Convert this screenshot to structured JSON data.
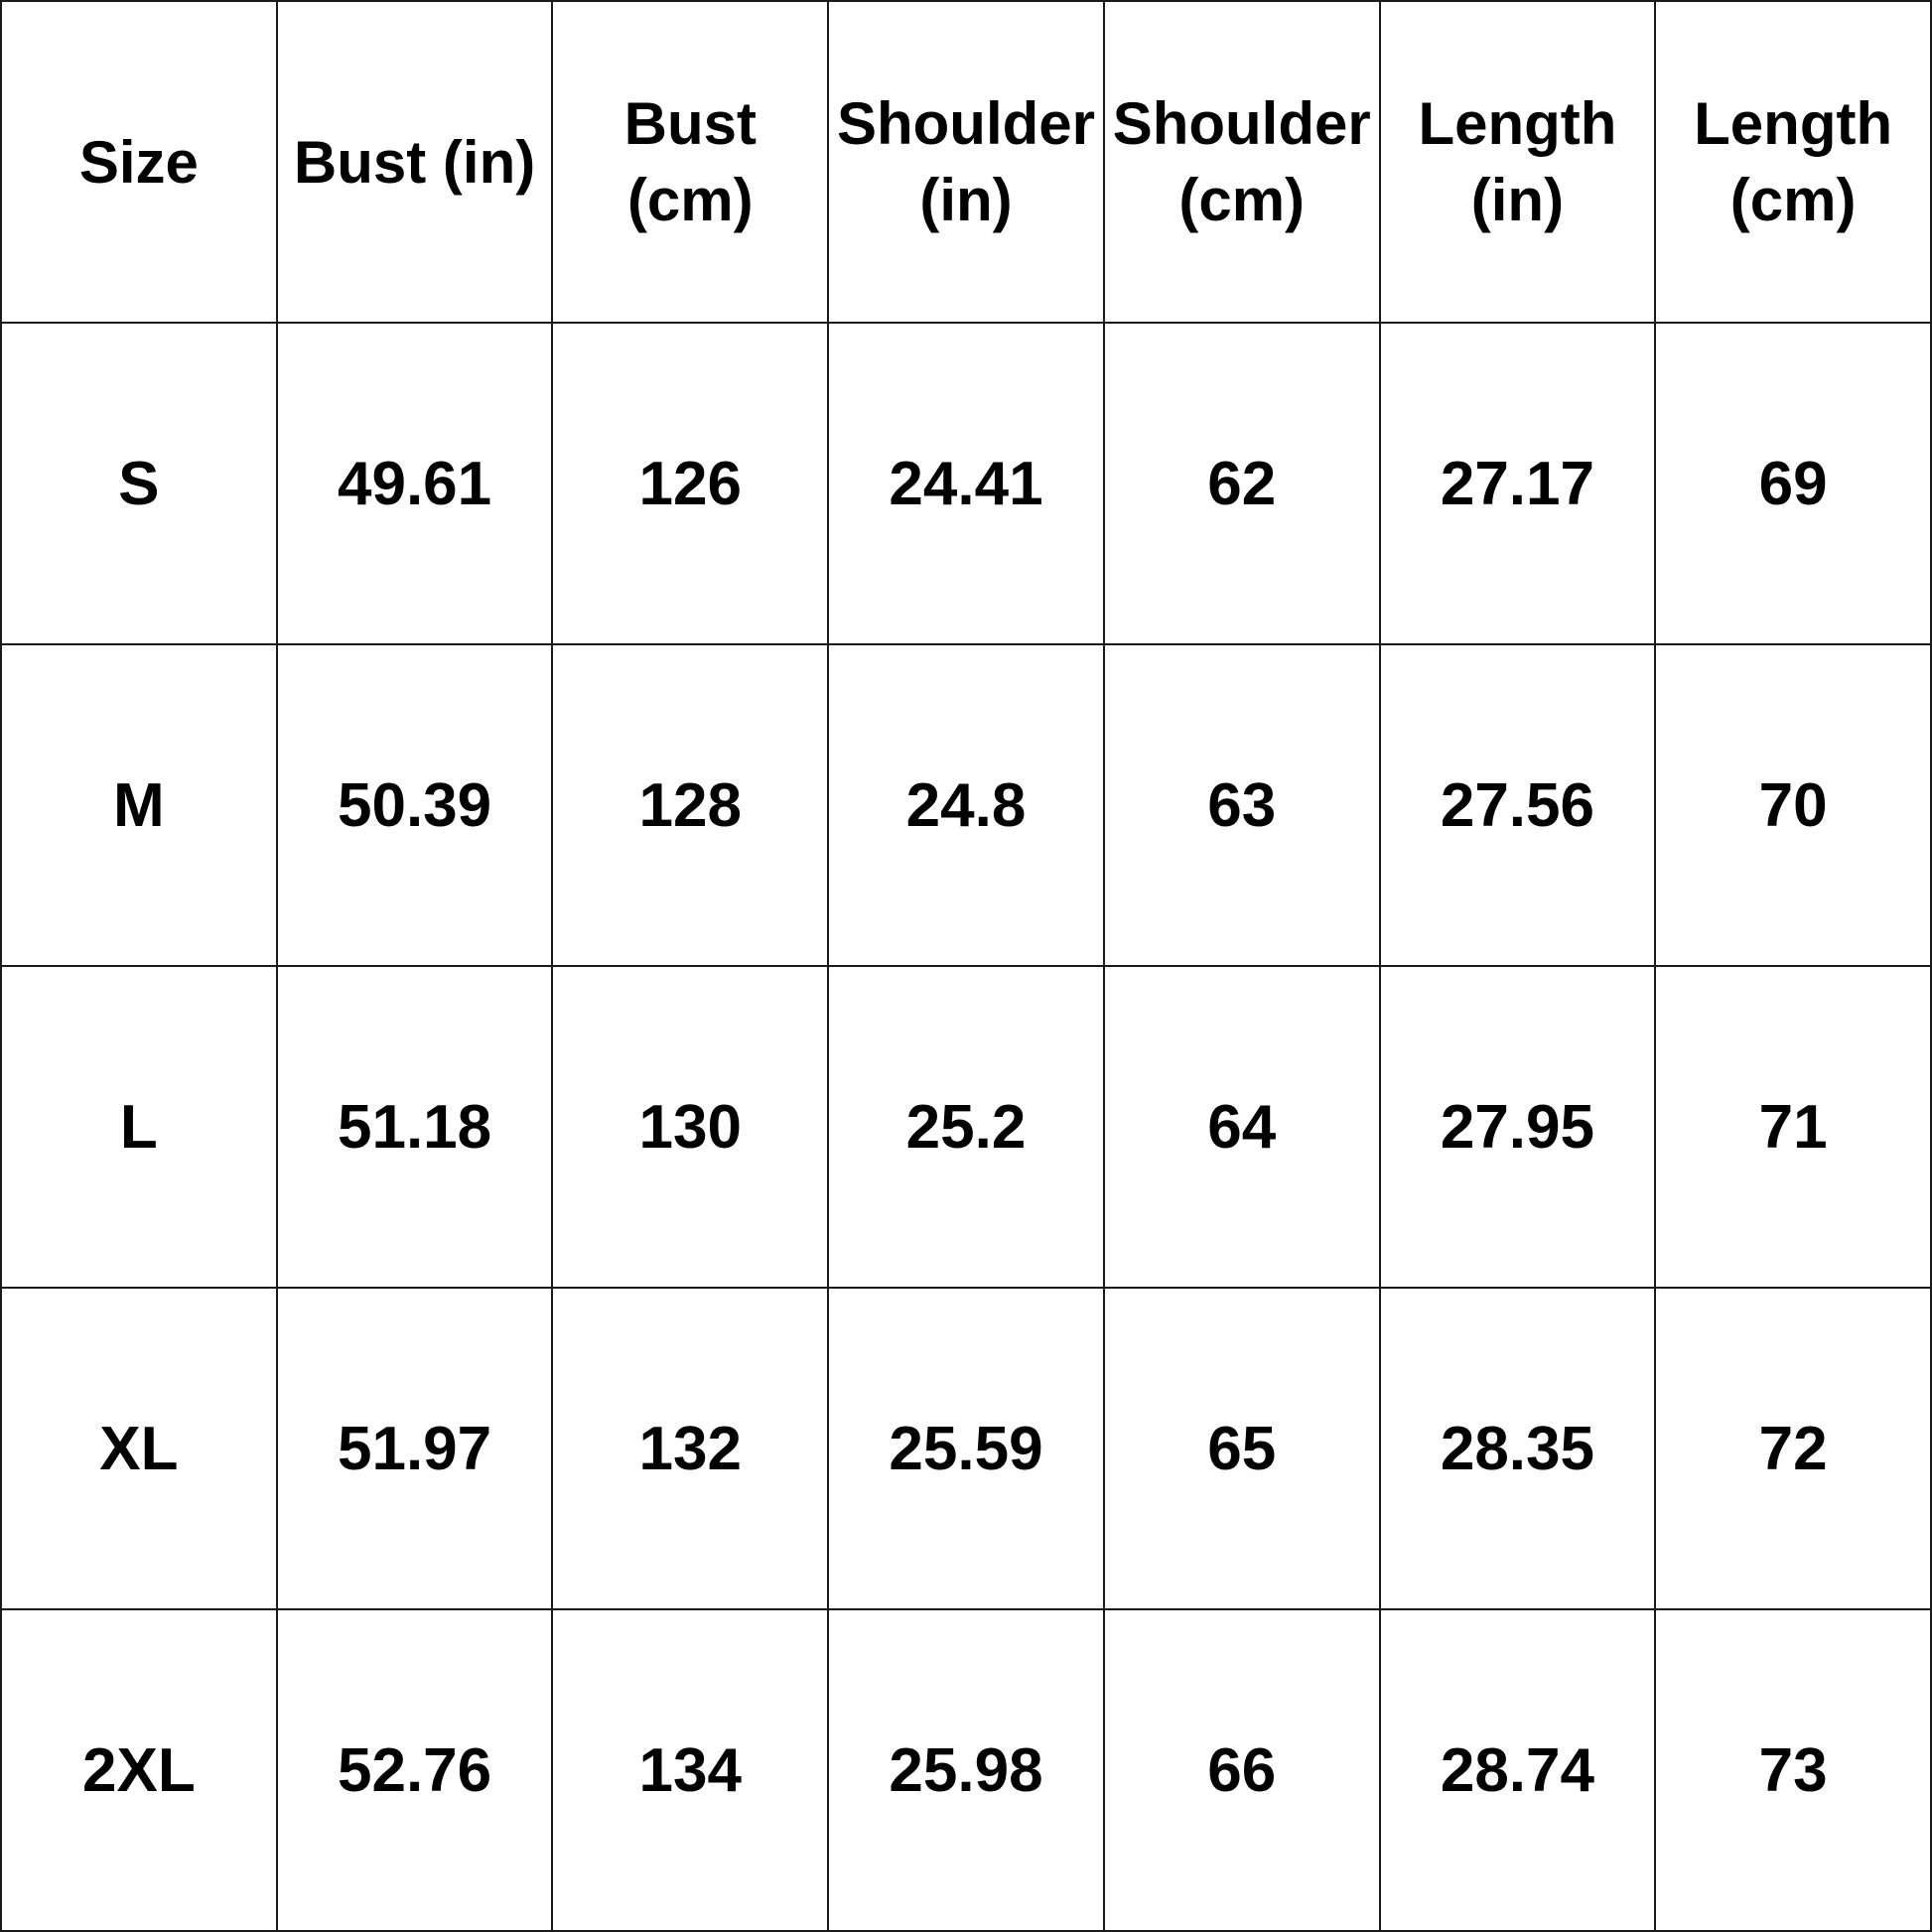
{
  "table": {
    "headers": [
      "Size",
      "Bust (in)",
      "Bust (cm)",
      "Shoulder\n(in)",
      "Shoulder\n(cm)",
      "Length\n(in)",
      "Length\n(cm)"
    ],
    "rows": [
      [
        "S",
        "49.61",
        "126",
        "24.41",
        "62",
        "27.17",
        "69"
      ],
      [
        "M",
        "50.39",
        "128",
        "24.8",
        "63",
        "27.56",
        "70"
      ],
      [
        "L",
        "51.18",
        "130",
        "25.2",
        "64",
        "27.95",
        "71"
      ],
      [
        "XL",
        "51.97",
        "132",
        "25.59",
        "65",
        "28.35",
        "72"
      ],
      [
        "2XL",
        "52.76",
        "134",
        "25.98",
        "66",
        "28.74",
        "73"
      ]
    ]
  },
  "colors": {
    "text": "#000000",
    "grid": "#1a1a1a",
    "background": "#ffffff"
  }
}
